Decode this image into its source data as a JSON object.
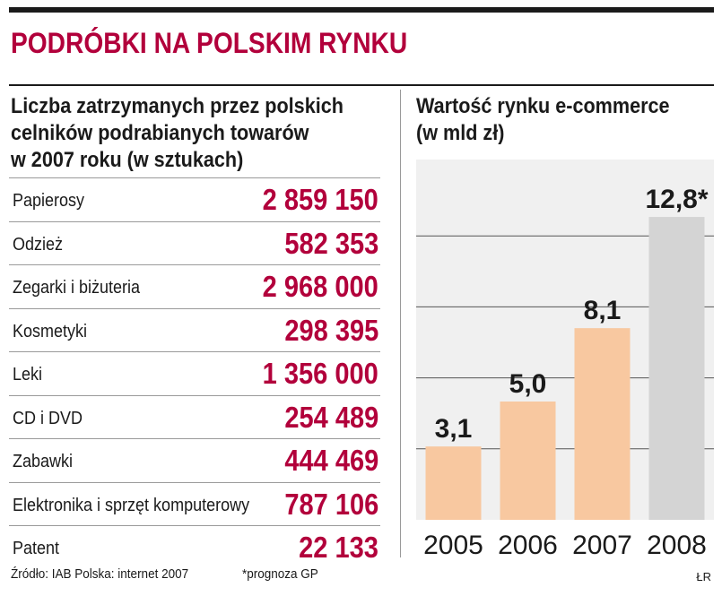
{
  "header": {
    "title": "PODRÓBKI NA POLSKIM RYNKU"
  },
  "left_panel": {
    "title_lines": [
      "Liczba zatrzymanych przez polskich",
      "celników podrabianych towarów",
      "w 2007 roku (w sztukach)"
    ],
    "rows": [
      {
        "label": "Papierosy",
        "value": "2 859 150"
      },
      {
        "label": "Odzież",
        "value": "582 353"
      },
      {
        "label": "Zegarki i biżuteria",
        "value": "2 968 000"
      },
      {
        "label": "Kosmetyki",
        "value": "298 395"
      },
      {
        "label": "Leki",
        "value": "1 356 000"
      },
      {
        "label": "CD i DVD",
        "value": "254 489"
      },
      {
        "label": "Zabawki",
        "value": "444 469"
      },
      {
        "label": "Elektronika i sprzęt komputerowy",
        "value": "787 106"
      },
      {
        "label": "Patent",
        "value": "22 133"
      }
    ]
  },
  "chart_data": {
    "type": "bar",
    "title": "Wartość rynku e-commerce (w mld zł)",
    "title_lines": [
      "Wartość rynku e-commerce",
      "(w mld zł)"
    ],
    "xlabel": "",
    "ylabel": "",
    "categories": [
      "2005",
      "2006",
      "2007",
      "2008"
    ],
    "values": [
      3.1,
      5.0,
      8.1,
      12.8
    ],
    "value_labels": [
      "3,1",
      "5,0",
      "8,1",
      "12,8*"
    ],
    "ylim": [
      0,
      15
    ],
    "grid": true,
    "legend": "none",
    "colors": {
      "actual": "#f8c8a0",
      "forecast": "#d4d4d4",
      "grid": "#555555"
    }
  },
  "footer": {
    "source": "Źródło: IAB Polska: internet 2007",
    "note": "*prognoza GP",
    "credit": "ŁR"
  }
}
